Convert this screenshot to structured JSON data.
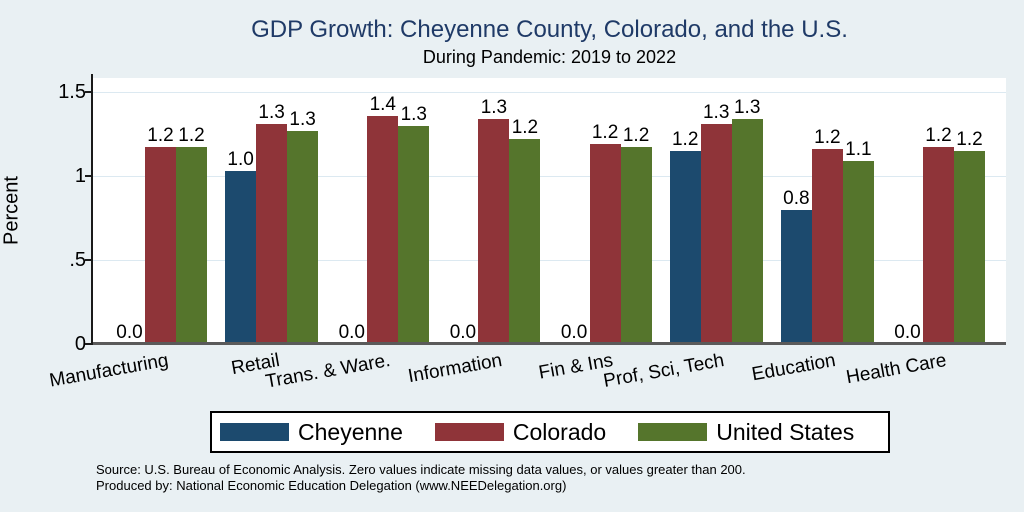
{
  "title": "GDP Growth: Cheyenne County, Colorado, and the U.S.",
  "subtitle": "During Pandemic: 2019 to 2022",
  "y_axis": {
    "label": "Percent",
    "ticks": [
      {
        "text": "0",
        "value": 0
      },
      {
        "text": ".5",
        "value": 0.5
      },
      {
        "text": "1",
        "value": 1
      },
      {
        "text": "1.5",
        "value": 1.5
      }
    ]
  },
  "chart_data": {
    "type": "bar",
    "title": "GDP Growth: Cheyenne County, Colorado, and the U.S.",
    "subtitle": "During Pandemic: 2019 to 2022",
    "ylabel": "Percent",
    "ylim": [
      0,
      1.58
    ],
    "grid": true,
    "legend_position": "bottom",
    "categories": [
      "Manufacturing",
      "Retail",
      "Trans. & Ware.",
      "Information",
      "Fin & Ins",
      "Prof, Sci, Tech",
      "Education",
      "Health Care"
    ],
    "series": [
      {
        "name": "Cheyenne",
        "color": "#1C4A6E",
        "values": [
          0,
          1.03,
          0,
          0,
          0,
          1.15,
          0.8,
          0
        ],
        "labels": [
          "0.0",
          "1.0",
          "0.0",
          "0.0",
          "0.0",
          "1.2",
          "0.8",
          "0.0"
        ]
      },
      {
        "name": "Colorado",
        "color": "#8F3439",
        "values": [
          1.17,
          1.31,
          1.36,
          1.34,
          1.19,
          1.31,
          1.16,
          1.17
        ],
        "labels": [
          "1.2",
          "1.3",
          "1.4",
          "1.3",
          "1.2",
          "1.3",
          "1.2",
          "1.2"
        ]
      },
      {
        "name": "United States",
        "color": "#55752C",
        "values": [
          1.17,
          1.27,
          1.3,
          1.22,
          1.17,
          1.34,
          1.09,
          1.15
        ],
        "labels": [
          "1.2",
          "1.3",
          "1.3",
          "1.2",
          "1.2",
          "1.3",
          "1.1",
          "1.2"
        ]
      }
    ]
  },
  "footer": {
    "line1": "Source: U.S. Bureau of Economic Analysis. Zero values indicate missing data values, or values greater than 200.",
    "line2": "Produced by: National Economic Education Delegation (www.NEEDelegation.org)"
  },
  "colors": {
    "background": "#E9F0F3",
    "plot_background": "#FFFFFF",
    "gridline": "#DCE9F1",
    "x_axis_line": "#5A5A5A",
    "y_axis_line": "#1A1A1A",
    "title": "#1F3A67"
  }
}
